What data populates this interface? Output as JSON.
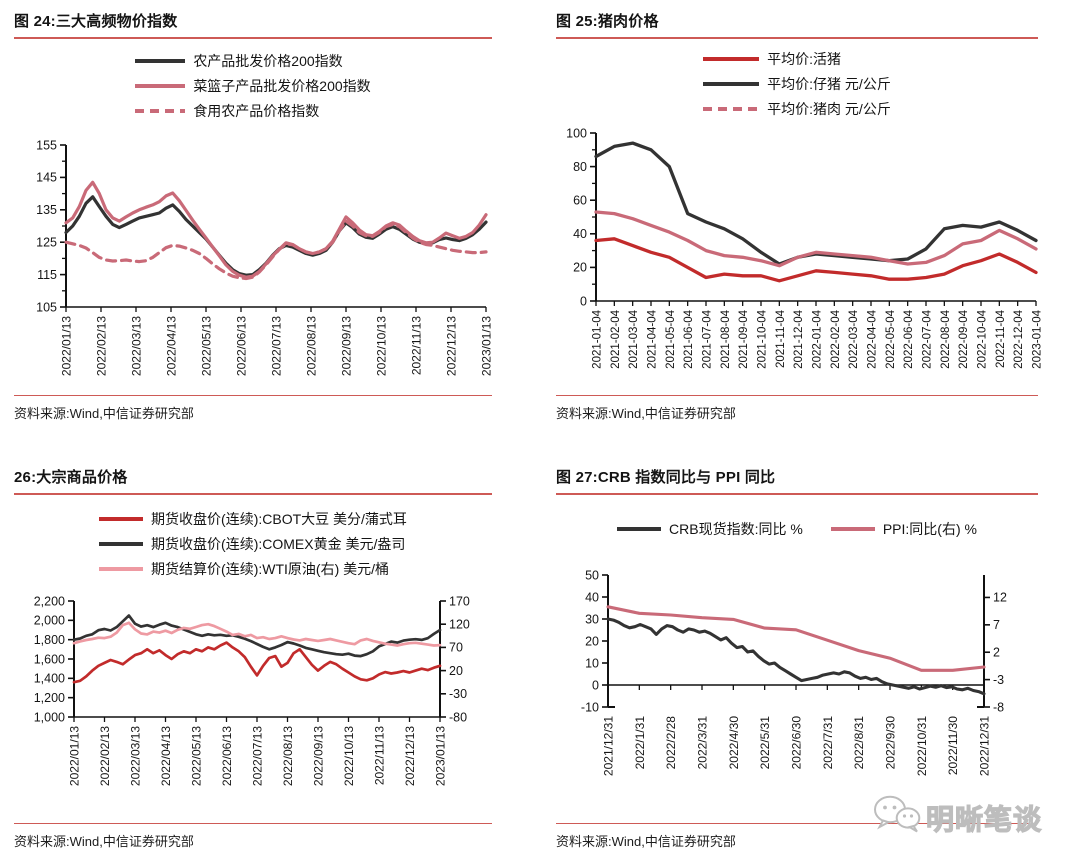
{
  "colors": {
    "rule_red": "#CE5A56",
    "line_black": "#333333",
    "line_rose": "#C96A78",
    "line_red": "#C22B2B",
    "line_pink": "#EE9AA2"
  },
  "watermark": {
    "text": "明晰笔谈",
    "icon": "wechat-logo-icon"
  },
  "chart_data": [
    {
      "id": "fig24",
      "type": "line",
      "title": "图 24:三大高频物价指数",
      "source": "资料来源:Wind,中信证券研究部",
      "legend_layout": "stacked",
      "grid": false,
      "legend_position": "top-center",
      "x_labels": [
        "2022/01/13",
        "2022/02/13",
        "2022/03/13",
        "2022/04/13",
        "2022/05/13",
        "2022/06/13",
        "2022/07/13",
        "2022/08/13",
        "2022/09/13",
        "2022/10/13",
        "2022/11/13",
        "2022/12/13",
        "2023/01/13"
      ],
      "y_left": {
        "lim": [
          105,
          155
        ],
        "ticks": [
          "155",
          "145",
          "135",
          "125",
          "115",
          "105"
        ]
      },
      "series": [
        {
          "name": "农产品批发价格200指数",
          "color_key": "line_black",
          "dash": false,
          "legend_dash": false,
          "axis": "left",
          "values": [
            128,
            130,
            133,
            137,
            139,
            136,
            133,
            130.5,
            129.5,
            130.5,
            131.5,
            132.5,
            133,
            133.5,
            134,
            135.5,
            136.5,
            134.5,
            132,
            130,
            128,
            126,
            123.5,
            121,
            118.5,
            116.5,
            115.3,
            114.8,
            115,
            116.5,
            118.5,
            121,
            123,
            124,
            123.5,
            122.5,
            121.5,
            121,
            121.5,
            122.5,
            125,
            128.5,
            131,
            129.5,
            127.5,
            126.5,
            126.2,
            127.5,
            129,
            129.8,
            129,
            127.5,
            126,
            125,
            124.5,
            124.8,
            125.8,
            126.3,
            125.8,
            125.5,
            126.2,
            127.3,
            129,
            131.2
          ]
        },
        {
          "name": "菜篮子产品批发价格200指数",
          "color_key": "line_rose",
          "dash": false,
          "legend_dash": false,
          "axis": "left",
          "values": [
            131,
            132.5,
            136,
            141,
            143.5,
            140,
            135,
            132.5,
            131.5,
            132.8,
            134,
            135,
            135.8,
            136.5,
            137.5,
            139.3,
            140.2,
            137.8,
            134.8,
            131.8,
            129,
            126.3,
            123.5,
            120.8,
            118,
            116,
            114.8,
            114.2,
            114.5,
            116,
            118.3,
            120.8,
            122.8,
            124.8,
            124.3,
            123,
            122,
            121.5,
            122,
            123,
            125.3,
            129,
            132.8,
            131,
            128.8,
            127.3,
            127,
            128.3,
            130,
            131,
            130.3,
            128.5,
            126.8,
            125.5,
            124.8,
            125,
            126.3,
            127.8,
            127,
            126.2,
            126.8,
            128,
            130.3,
            133.5
          ]
        },
        {
          "name": "食用农产品价格指数",
          "color_key": "line_rose",
          "dash": true,
          "legend_dash": true,
          "axis": "left",
          "values": [
            125,
            124.5,
            124,
            123.2,
            121.8,
            120.3,
            119.5,
            119.2,
            119.3,
            119.5,
            119.2,
            119,
            119.3,
            120.3,
            121.8,
            123.3,
            124,
            123.8,
            123.2,
            122.5,
            121.5,
            120,
            118.3,
            116.8,
            115.5,
            114.5,
            114,
            113.8,
            114.2,
            115.8,
            118,
            120.5,
            122.8,
            124.5,
            124.2,
            123,
            122,
            121.5,
            122,
            123,
            125,
            128.5,
            131.5,
            130,
            128,
            127,
            126.8,
            128,
            129.8,
            130.5,
            129.8,
            128,
            126.3,
            125,
            124.3,
            124,
            123.5,
            123,
            122.5,
            122.2,
            122,
            121.8,
            121.8,
            122
          ]
        }
      ]
    },
    {
      "id": "fig25",
      "type": "line",
      "title": "图 25:猪肉价格",
      "source": "资料来源:Wind,中信证券研究部",
      "legend_layout": "stacked",
      "grid": false,
      "legend_position": "top-center",
      "x_labels": [
        "2021-01-04",
        "2021-02-04",
        "2021-03-04",
        "2021-04-04",
        "2021-05-04",
        "2021-06-04",
        "2021-07-04",
        "2021-08-04",
        "2021-09-04",
        "2021-10-04",
        "2021-11-04",
        "2021-12-04",
        "2022-01-04",
        "2022-02-04",
        "2022-03-04",
        "2022-04-04",
        "2022-05-04",
        "2022-06-04",
        "2022-07-04",
        "2022-08-04",
        "2022-09-04",
        "2022-10-04",
        "2022-11-04",
        "2022-12-04",
        "2023-01-04"
      ],
      "y_left": {
        "lim": [
          0,
          100
        ],
        "ticks": [
          "100",
          "80",
          "60",
          "40",
          "20",
          "0"
        ]
      },
      "series": [
        {
          "name": "平均价:活猪",
          "color_key": "line_red",
          "dash": false,
          "legend_dash": false,
          "axis": "left",
          "values": [
            36,
            37,
            33,
            29,
            26,
            20,
            14,
            16,
            15,
            15,
            12,
            15,
            18,
            17,
            16,
            15,
            13,
            13,
            14,
            16,
            21,
            24,
            28,
            23,
            17
          ]
        },
        {
          "name": "平均价:仔猪 元/公斤",
          "color_key": "line_black",
          "dash": false,
          "legend_dash": false,
          "axis": "left",
          "values": [
            86,
            92,
            94,
            90,
            80,
            52,
            47,
            43,
            37,
            29,
            22,
            26,
            28,
            27,
            26,
            25,
            24,
            25,
            31,
            43,
            45,
            44,
            47,
            42,
            36
          ]
        },
        {
          "name": "平均价:猪肉 元/公斤",
          "color_key": "line_rose",
          "dash": false,
          "legend_dash": true,
          "axis": "left",
          "values": [
            53,
            52,
            49,
            45,
            41,
            36,
            30,
            27,
            26,
            24,
            21,
            26,
            29,
            28,
            27,
            26,
            24,
            22,
            23,
            27,
            34,
            36,
            42,
            37,
            31
          ]
        }
      ]
    },
    {
      "id": "fig26",
      "type": "line",
      "title": "26:大宗商品价格",
      "source": "资料来源:Wind,中信证券研究部",
      "legend_layout": "stacked",
      "grid": false,
      "legend_position": "top-center",
      "x_labels": [
        "2022/01/13",
        "2022/02/13",
        "2022/03/13",
        "2022/04/13",
        "2022/05/13",
        "2022/06/13",
        "2022/07/13",
        "2022/08/13",
        "2022/09/13",
        "2022/10/13",
        "2022/11/13",
        "2022/12/13",
        "2023/01/13"
      ],
      "y_left": {
        "lim": [
          1000,
          2200
        ],
        "ticks": [
          "2,200",
          "2,000",
          "1,800",
          "1,600",
          "1,400",
          "1,200",
          "1,000"
        ]
      },
      "y_right": {
        "lim": [
          -80,
          170
        ],
        "ticks": [
          "170",
          "120",
          "70",
          "20",
          "-30",
          "-80"
        ]
      },
      "series": [
        {
          "name": "期货收盘价(连续):CBOT大豆 美分/蒲式耳",
          "color_key": "line_red",
          "dash": false,
          "legend_dash": false,
          "axis": "left",
          "values": [
            1360,
            1375,
            1420,
            1480,
            1530,
            1560,
            1590,
            1570,
            1545,
            1595,
            1640,
            1660,
            1700,
            1660,
            1690,
            1640,
            1600,
            1650,
            1680,
            1660,
            1700,
            1680,
            1720,
            1700,
            1740,
            1770,
            1720,
            1680,
            1620,
            1520,
            1430,
            1530,
            1610,
            1630,
            1520,
            1560,
            1660,
            1700,
            1620,
            1540,
            1480,
            1530,
            1570,
            1545,
            1500,
            1460,
            1420,
            1390,
            1380,
            1400,
            1440,
            1465,
            1450,
            1460,
            1475,
            1460,
            1480,
            1500,
            1485,
            1510,
            1530
          ]
        },
        {
          "name": "期货收盘价(连续):COMEX黄金 美元/盎司",
          "color_key": "line_black",
          "dash": false,
          "legend_dash": false,
          "axis": "left",
          "values": [
            1800,
            1812,
            1840,
            1855,
            1898,
            1910,
            1895,
            1930,
            1990,
            2050,
            1965,
            1935,
            1950,
            1930,
            1955,
            1975,
            1945,
            1930,
            1905,
            1880,
            1855,
            1840,
            1855,
            1845,
            1850,
            1840,
            1845,
            1830,
            1810,
            1785,
            1755,
            1725,
            1700,
            1720,
            1745,
            1775,
            1760,
            1740,
            1715,
            1700,
            1685,
            1670,
            1660,
            1650,
            1645,
            1655,
            1635,
            1630,
            1650,
            1680,
            1730,
            1755,
            1780,
            1770,
            1790,
            1800,
            1805,
            1798,
            1815,
            1860,
            1900
          ]
        },
        {
          "name": "期货结算价(连续):WTI原油(右) 美元/桶",
          "color_key": "line_pink",
          "dash": false,
          "legend_dash": false,
          "axis": "right",
          "values": [
            79,
            83,
            86,
            88,
            91,
            90,
            93,
            102,
            118,
            123,
            109,
            100,
            98,
            104,
            102,
            106,
            101,
            108,
            112,
            110,
            114,
            118,
            120,
            116,
            110,
            104,
            97,
            99,
            94,
            97,
            90,
            92,
            88,
            90,
            94,
            90,
            87,
            85,
            88,
            86,
            84,
            86,
            88,
            85,
            82,
            79,
            77,
            85,
            88,
            84,
            81,
            78,
            76,
            74,
            77,
            79,
            80,
            78,
            76,
            74,
            75
          ]
        }
      ]
    },
    {
      "id": "fig27",
      "type": "line",
      "title": "图 27:CRB 指数同比与 PPI 同比",
      "source": "资料来源:Wind,中信证券研究部",
      "legend_layout": "row",
      "grid": false,
      "legend_position": "top-center",
      "x_axis_at_value": 0,
      "x_labels": [
        "2021/12/31",
        "2022/1/31",
        "2022/2/28",
        "2022/3/31",
        "2022/4/30",
        "2022/5/31",
        "2022/6/30",
        "2022/7/31",
        "2022/8/31",
        "2022/9/30",
        "2022/10/31",
        "2022/11/30",
        "2022/12/31"
      ],
      "y_left": {
        "lim": [
          -10,
          50
        ],
        "ticks": [
          "50",
          "40",
          "30",
          "20",
          "10",
          "0",
          "-10"
        ]
      },
      "y_right": {
        "lim": [
          -8,
          12
        ],
        "ticks": [
          "12",
          "7",
          "2",
          "-3",
          "-8"
        ]
      },
      "series": [
        {
          "name": "CRB现货指数:同比 %",
          "color_key": "line_black",
          "dash": false,
          "legend_dash": false,
          "axis": "left",
          "values": [
            30,
            29.5,
            28.5,
            27,
            26,
            26.5,
            27.5,
            26.5,
            25.5,
            23,
            25.5,
            27,
            26.5,
            25,
            24,
            25.5,
            25,
            24,
            24.5,
            23.5,
            22,
            20.5,
            21.5,
            19,
            17,
            17.5,
            15,
            15.5,
            13,
            11,
            9.5,
            10,
            8,
            6.5,
            5,
            3.5,
            2,
            2.5,
            3,
            3.5,
            4.5,
            5,
            5.5,
            5,
            6,
            5.5,
            4,
            3,
            3.5,
            2.5,
            3,
            1.5,
            0.5,
            0,
            -0.5,
            -1,
            -1.5,
            -0.8,
            -1.8,
            -1.2,
            -0.5,
            -1,
            -0.3,
            -1.2,
            -0.8,
            -1.8,
            -2.2,
            -1.5,
            -2.5,
            -3,
            -4
          ]
        },
        {
          "name": "PPI:同比(右) %",
          "color_key": "line_rose",
          "dash": false,
          "legend_dash": false,
          "axis": "right",
          "values": [
            10.3,
            9.1,
            8.8,
            8.3,
            8.0,
            6.4,
            6.1,
            4.2,
            2.3,
            0.9,
            -1.3,
            -1.3,
            -0.7
          ]
        }
      ]
    }
  ]
}
